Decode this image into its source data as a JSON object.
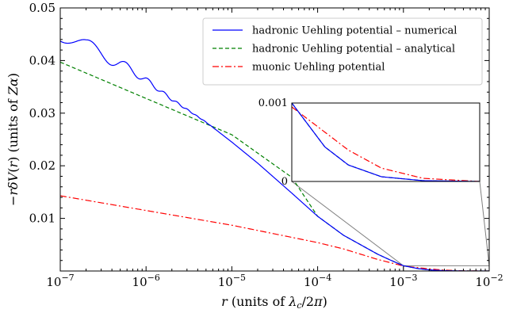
{
  "chart_data": {
    "type": "line",
    "x_scale": "log",
    "xlim": [
      1e-07,
      0.01
    ],
    "ylim": [
      0,
      0.05
    ],
    "xlabel": "r (units of λ_c/2π)",
    "ylabel": "−rδV(r) (units of Zα)",
    "x_ticks": [
      {
        "value": 1e-07,
        "base": "10",
        "exp": "−7"
      },
      {
        "value": 1e-06,
        "base": "10",
        "exp": "−6"
      },
      {
        "value": 1e-05,
        "base": "10",
        "exp": "−5"
      },
      {
        "value": 0.0001,
        "base": "10",
        "exp": "−4"
      },
      {
        "value": 0.001,
        "base": "10",
        "exp": "−3"
      },
      {
        "value": 0.01,
        "base": "10",
        "exp": "−2"
      }
    ],
    "y_ticks": [
      {
        "value": 0.01,
        "label": "0.01"
      },
      {
        "value": 0.02,
        "label": "0.02"
      },
      {
        "value": 0.03,
        "label": "0.03"
      },
      {
        "value": 0.04,
        "label": "0.04"
      },
      {
        "value": 0.05,
        "label": "0.05"
      }
    ],
    "legend_position": "top-right",
    "series": [
      {
        "name": "hadronic Uehling potential – numerical",
        "color": "#0000ff",
        "style": "solid",
        "oscillation": {
          "x_end": 1e-05,
          "amplitude_start": 0.0025
        },
        "x": [
          1e-07,
          2e-07,
          5e-07,
          1e-06,
          2e-06,
          5e-06,
          1e-05,
          2e-05,
          5e-05,
          0.0001,
          0.0002,
          0.0005,
          0.0007,
          0.001,
          0.0015,
          0.002,
          0.003,
          0.005,
          0.01
        ],
        "y": [
          0.0462,
          0.0425,
          0.0395,
          0.0363,
          0.0326,
          0.0283,
          0.0245,
          0.0205,
          0.0148,
          0.0104,
          0.0068,
          0.0032,
          0.0021,
          0.001,
          0.00044,
          0.00021,
          6e-05,
          1e-05,
          0.0
        ]
      },
      {
        "name": "hadronic Uehling potential – analytical",
        "color": "#008000",
        "style": "dashed",
        "x": [
          1e-07,
          1e-06,
          1e-05,
          5e-05,
          0.0001,
          0.0002,
          0.0005,
          0.0007,
          0.001,
          0.0015,
          0.002,
          0.003,
          0.005,
          0.01
        ],
        "y": [
          0.0397,
          0.0328,
          0.0259,
          0.0178,
          0.0104,
          0.0068,
          0.0032,
          0.0021,
          0.001,
          0.00044,
          0.00021,
          6e-05,
          1e-05,
          0.0
        ]
      },
      {
        "name": "muonic Uehling potential",
        "color": "#ff0000",
        "style": "dashdot",
        "x": [
          1e-07,
          1e-06,
          1e-05,
          0.0001,
          0.0002,
          0.0005,
          0.001,
          0.002,
          0.003,
          0.005,
          0.01
        ],
        "y": [
          0.0143,
          0.0115,
          0.0087,
          0.0054,
          0.0042,
          0.0022,
          0.00095,
          0.0004,
          0.00017,
          4e-05,
          0.0
        ]
      }
    ],
    "inset": {
      "xlim": [
        0.001,
        0.01
      ],
      "ylim": [
        0,
        0.001
      ],
      "y_ticks": [
        {
          "value": 0,
          "label": "0"
        },
        {
          "value": 0.001,
          "label": "0.001"
        }
      ],
      "connector_color": "#808080"
    }
  }
}
